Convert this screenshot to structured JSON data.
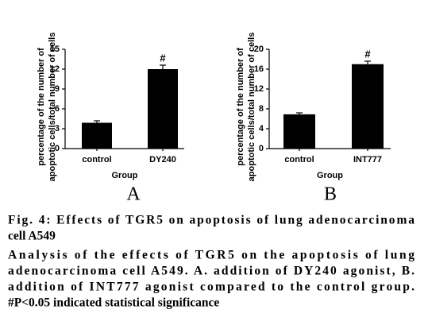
{
  "chart_data": [
    {
      "type": "bar",
      "label": "A",
      "ylabel": [
        "percentage of the number of",
        "apoptotic cells/total number of cells"
      ],
      "xlabel": "Group",
      "categories": [
        "control",
        "DY240"
      ],
      "values": [
        3.9,
        12
      ],
      "errors": [
        0.3,
        0.6
      ],
      "markers": [
        null,
        "#"
      ],
      "color": "#000000",
      "ylim": [
        0,
        15
      ],
      "yticks": [
        0,
        3,
        6,
        9,
        12,
        15
      ]
    },
    {
      "type": "bar",
      "label": "B",
      "ylabel": [
        "percentage of the number of",
        "apoptotic cells/total number of cells"
      ],
      "xlabel": "Group",
      "categories": [
        "control",
        "INT777"
      ],
      "values": [
        6.9,
        17
      ],
      "errors": [
        0.3,
        0.6
      ],
      "markers": [
        null,
        "#"
      ],
      "color": "#000000",
      "ylim": [
        0,
        20
      ],
      "yticks": [
        0,
        4,
        8,
        12,
        16,
        20
      ]
    }
  ],
  "caption": {
    "title": [
      "Fig. 4: Effects of TGR5 on apoptosis of lung adenocarcinoma",
      "cell A549"
    ],
    "text": [
      "Analysis of the effects of TGR5 on the apoptosis of lung",
      "adenocarcinoma cell A549. A. addition of DY240 agonist, B.",
      "addition of INT777 agonist compared to the control group.",
      "#P<0.05 indicated statistical significance"
    ]
  }
}
